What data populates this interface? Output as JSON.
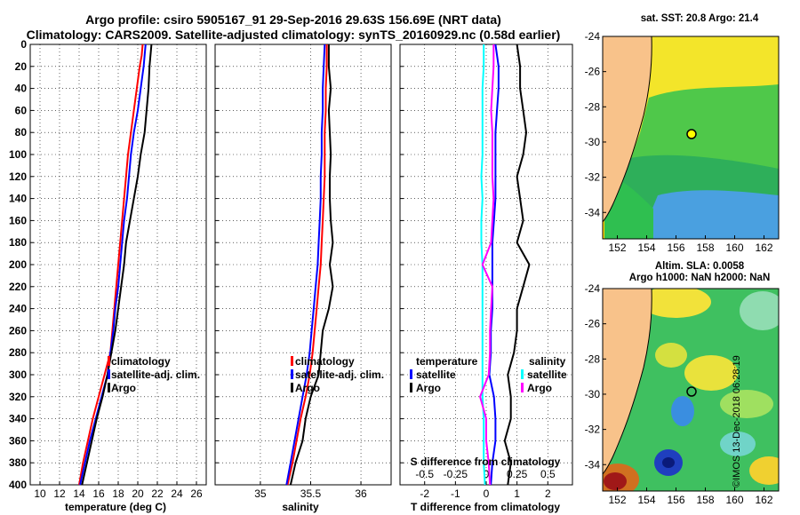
{
  "header": {
    "title_line1": "Argo profile: csiro 5905167_91 29-Sep-2016 29.63S 156.69E (NRT data)",
    "title_line2": "Climatology: CARS2009. Satellite-adjusted climatology: synTS_20160929.nc (0.58d earlier)"
  },
  "colors": {
    "climatology": "#ff0000",
    "satellite": "#0000ff",
    "argo": "#000000",
    "salinity_satellite": "#00ffff",
    "salinity_argo": "#ff00ff"
  },
  "chart_data": [
    {
      "type": "line",
      "panel": "temperature",
      "title": "",
      "xlabel": "temperature (deg C)",
      "ylabel": "",
      "xlim": [
        9,
        27
      ],
      "ylim": [
        400,
        0
      ],
      "xticks": [
        10,
        12,
        14,
        16,
        18,
        20,
        22,
        24,
        26
      ],
      "yticks": [
        0,
        20,
        40,
        60,
        80,
        100,
        120,
        140,
        160,
        180,
        200,
        220,
        240,
        260,
        280,
        300,
        320,
        340,
        360,
        380,
        400
      ],
      "grid": true,
      "depth": [
        0,
        10,
        20,
        40,
        60,
        80,
        100,
        120,
        140,
        160,
        180,
        200,
        220,
        240,
        260,
        280,
        300,
        320,
        340,
        360,
        380,
        400
      ],
      "series": [
        {
          "name": "climatology",
          "values": [
            20.5,
            20.4,
            20.2,
            19.9,
            19.6,
            19.3,
            19.0,
            18.8,
            18.6,
            18.4,
            18.2,
            18.0,
            17.8,
            17.6,
            17.4,
            17.2,
            16.6,
            16.0,
            15.4,
            14.9,
            14.4,
            14.0
          ]
        },
        {
          "name": "satellite-adj. clim.",
          "values": [
            20.8,
            20.7,
            20.6,
            20.3,
            20.0,
            19.6,
            19.3,
            19.1,
            18.9,
            18.6,
            18.4,
            18.2,
            18.0,
            17.7,
            17.5,
            17.2,
            16.9,
            16.3,
            15.7,
            15.1,
            14.6,
            14.1
          ]
        },
        {
          "name": "Argo",
          "values": [
            21.4,
            21.3,
            21.2,
            21.1,
            20.9,
            20.7,
            20.3,
            20.0,
            19.6,
            19.2,
            18.8,
            18.6,
            18.3,
            18.0,
            17.7,
            17.3,
            16.9,
            16.4,
            15.8,
            15.3,
            14.8,
            14.3
          ]
        }
      ],
      "legend": {
        "position": "center-right",
        "entries": [
          "climatology",
          "satellite-adj. clim.",
          "Argo"
        ]
      }
    },
    {
      "type": "line",
      "panel": "salinity",
      "title": "",
      "xlabel": "salinity",
      "ylabel": "",
      "xlim": [
        34.55,
        36.3
      ],
      "ylim": [
        400,
        0
      ],
      "xticks": [
        35,
        35.5,
        36
      ],
      "xtick_labels": [
        "35",
        "35.5",
        "36"
      ],
      "yticks": [
        0,
        20,
        40,
        60,
        80,
        100,
        120,
        140,
        160,
        180,
        200,
        220,
        240,
        260,
        280,
        300,
        320,
        340,
        360,
        380,
        400
      ],
      "grid": true,
      "depth": [
        0,
        20,
        40,
        60,
        80,
        100,
        120,
        140,
        160,
        180,
        200,
        220,
        240,
        260,
        280,
        300,
        320,
        340,
        360,
        380,
        400
      ],
      "series": [
        {
          "name": "climatology",
          "values": [
            35.66,
            35.66,
            35.65,
            35.65,
            35.64,
            35.64,
            35.64,
            35.63,
            35.62,
            35.61,
            35.6,
            35.58,
            35.56,
            35.54,
            35.52,
            35.49,
            35.45,
            35.4,
            35.36,
            35.32,
            35.27
          ]
        },
        {
          "name": "satellite-adj. clim.",
          "values": [
            35.64,
            35.63,
            35.62,
            35.62,
            35.61,
            35.61,
            35.6,
            35.6,
            35.59,
            35.58,
            35.57,
            35.55,
            35.53,
            35.51,
            35.49,
            35.46,
            35.42,
            35.38,
            35.34,
            35.3,
            35.26
          ]
        },
        {
          "name": "Argo",
          "values": [
            35.68,
            35.68,
            35.7,
            35.68,
            35.69,
            35.7,
            35.69,
            35.69,
            35.7,
            35.72,
            35.69,
            35.72,
            35.68,
            35.62,
            35.6,
            35.58,
            35.5,
            35.45,
            35.42,
            35.35,
            35.3
          ]
        }
      ],
      "legend": {
        "position": "center-right",
        "entries": [
          "climatology",
          "satellite-adj. clim.",
          "Argo"
        ]
      }
    },
    {
      "type": "line",
      "panel": "difference",
      "title": "",
      "xlabel": "T difference from climatology",
      "xlabel_top": "S difference from climatology",
      "ylabel": "",
      "xlim": [
        -2.8,
        2.8
      ],
      "ylim": [
        400,
        0
      ],
      "xticks": [
        -2,
        -1,
        0,
        1,
        2
      ],
      "xtick_labels": [
        "-2",
        "-1",
        "0",
        "1",
        "2"
      ],
      "sticks": [
        -0.5,
        -0.25,
        0,
        0.25,
        0.5
      ],
      "stick_labels": [
        "-0.5",
        "-0.25",
        "0",
        "0.25",
        "0.5"
      ],
      "slim": [
        -0.7,
        0.7
      ],
      "yticks": [
        0,
        20,
        40,
        60,
        80,
        100,
        120,
        140,
        160,
        180,
        200,
        220,
        240,
        260,
        280,
        300,
        320,
        340,
        360,
        380,
        400
      ],
      "grid": true,
      "depth": [
        0,
        20,
        40,
        60,
        80,
        100,
        120,
        140,
        160,
        180,
        200,
        220,
        240,
        260,
        280,
        300,
        320,
        340,
        360,
        380,
        400
      ],
      "series": [
        {
          "name": "temperature satellite",
          "axis": "T",
          "values": [
            0.3,
            0.4,
            0.4,
            0.35,
            0.3,
            0.3,
            0.3,
            0.3,
            0.25,
            0.2,
            0.2,
            0.2,
            0.2,
            0.15,
            0.15,
            0.1,
            0.25,
            0.3,
            0.3,
            0.2,
            0.15
          ]
        },
        {
          "name": "temperature Argo",
          "axis": "T",
          "values": [
            1.0,
            1.1,
            1.1,
            1.2,
            1.3,
            1.2,
            1.0,
            1.1,
            1.2,
            1.0,
            1.4,
            1.2,
            1.0,
            1.0,
            0.9,
            0.7,
            0.8,
            0.8,
            0.6,
            0.8,
            0.7
          ]
        },
        {
          "name": "salinity satellite",
          "axis": "S",
          "values": [
            -0.02,
            -0.02,
            -0.03,
            -0.03,
            -0.03,
            -0.03,
            -0.04,
            -0.03,
            -0.04,
            -0.04,
            -0.03,
            -0.03,
            -0.03,
            -0.03,
            -0.03,
            -0.03,
            -0.03,
            -0.02,
            -0.02,
            -0.02,
            -0.01
          ]
        },
        {
          "name": "salinity Argo",
          "axis": "S",
          "values": [
            0.06,
            0.06,
            0.05,
            0.04,
            0.05,
            0.05,
            0.05,
            0.06,
            0.05,
            0.04,
            -0.03,
            0.05,
            0.04,
            0.03,
            0.03,
            0.02,
            -0.05,
            0.0,
            0.0,
            0.02,
            0.03
          ]
        }
      ],
      "legend": {
        "temperature_title": "temperature",
        "temperature_entries": [
          "satellite",
          "Argo"
        ],
        "salinity_title": "salinity",
        "salinity_entries": [
          "satellite",
          "Argo"
        ]
      }
    }
  ],
  "maps": {
    "sst": {
      "title": "sat. SST: 20.8 Argo: 21.4",
      "lat_labels": [
        "-24",
        "-26",
        "-28",
        "-30",
        "-32",
        "-34"
      ],
      "lon_labels": [
        "152",
        "154",
        "156",
        "158",
        "160",
        "162"
      ],
      "marker": {
        "lon": 156.69,
        "lat": -29.63
      }
    },
    "sla": {
      "title_line1": "Altim. SLA: 0.0058",
      "title_line2": "Argo h1000: NaN h2000: NaN",
      "lat_labels": [
        "-24",
        "-26",
        "-28",
        "-30",
        "-32",
        "-34"
      ],
      "lon_labels": [
        "152",
        "154",
        "156",
        "158",
        "160",
        "162"
      ],
      "marker": {
        "lon": 156.69,
        "lat": -29.63
      }
    }
  },
  "footer": {
    "credit": "©IMOS 13-Dec-2018 06:28:19"
  }
}
